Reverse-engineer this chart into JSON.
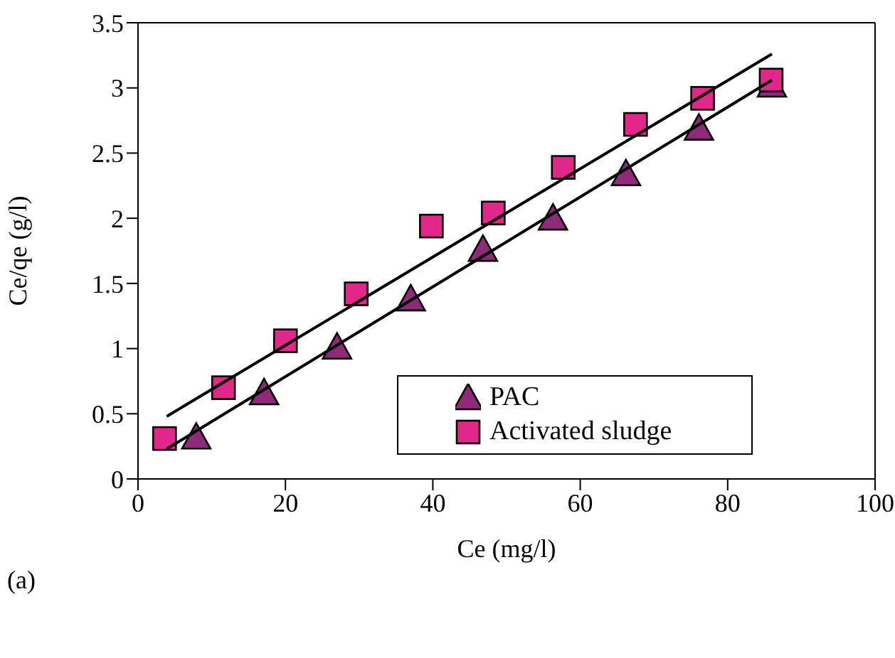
{
  "chart_data": {
    "type": "scatter",
    "xlabel": "Ce (mg/l)",
    "ylabel": "Ce/qe (g/l)",
    "annotations": [
      "(a)"
    ],
    "xlim": [
      0,
      100
    ],
    "xticks": [
      0,
      20,
      40,
      60,
      80,
      100
    ],
    "ylim": [
      0,
      3.5
    ],
    "yticks": [
      0,
      0.5,
      1,
      1.5,
      2,
      2.5,
      3,
      3.5
    ],
    "legend": "bottom right",
    "series": [
      {
        "name": "PAC",
        "color": "#8e2a78",
        "marker": "triangle",
        "x": [
          7.9,
          17.1,
          27.0,
          37.0,
          46.8,
          56.3,
          66.2,
          76.1,
          86.0
        ],
        "values": [
          0.32,
          0.66,
          1.01,
          1.38,
          1.76,
          2.0,
          2.34,
          2.69,
          3.02
        ]
      },
      {
        "name": "Activated sludge",
        "color": "#e0288a",
        "marker": "square",
        "x": [
          3.6,
          11.6,
          20.0,
          29.6,
          39.8,
          48.2,
          57.7,
          67.5,
          76.6,
          85.9
        ],
        "values": [
          0.31,
          0.7,
          1.06,
          1.42,
          1.94,
          2.04,
          2.39,
          2.72,
          2.92,
          3.06
        ]
      },
      {
        "type": "line",
        "color": "#000000",
        "marker": "none",
        "x": [
          3.9,
          86
        ],
        "values": [
          0.48,
          3.26
        ]
      },
      {
        "type": "line",
        "color": "#000000",
        "marker": "none",
        "x": [
          3.9,
          86
        ],
        "values": [
          0.23,
          3.06
        ]
      }
    ]
  }
}
